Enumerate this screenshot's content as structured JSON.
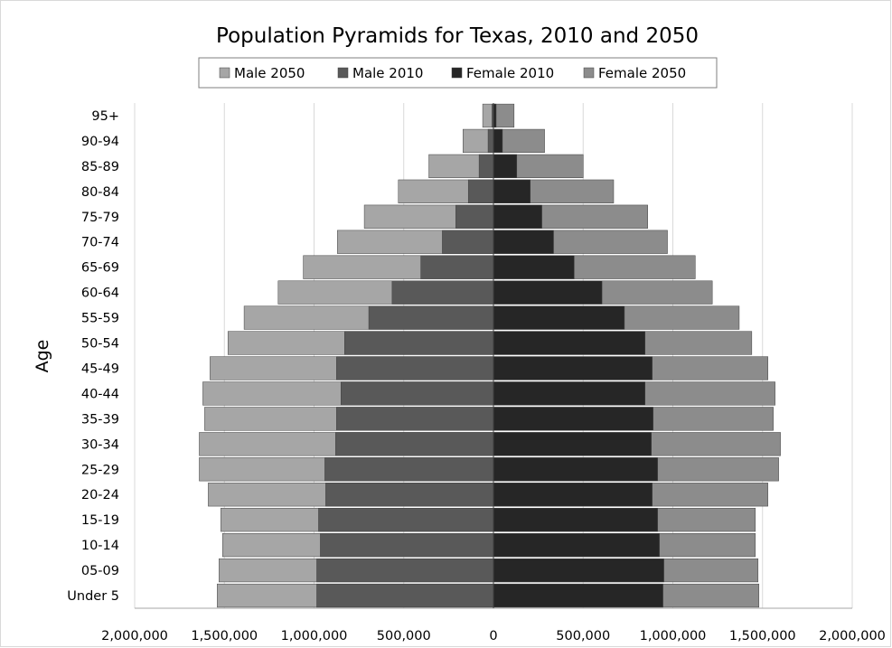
{
  "chart_data": {
    "type": "bar",
    "orientation": "horizontal",
    "title": "Population Pyramids for Texas, 2010 and 2050",
    "ylabel": "Age",
    "xlabel": "",
    "xlim": [
      -2000000,
      2000000
    ],
    "x_ticks": [
      -2000000,
      -1500000,
      -1000000,
      -500000,
      0,
      500000,
      1000000,
      1500000,
      2000000
    ],
    "x_tick_labels": [
      "2,000,000",
      "1,500,000",
      "1,000,000",
      "500,000",
      "0",
      "500,000",
      "1,000,000",
      "1,500,000",
      "2,000,000"
    ],
    "grid": "vertical",
    "legend_position": "top",
    "categories": [
      "Under 5",
      "05-09",
      "10-14",
      "15-19",
      "20-24",
      "25-29",
      "30-34",
      "35-39",
      "40-44",
      "45-49",
      "50-54",
      "55-59",
      "60-64",
      "65-69",
      "70-74",
      "75-79",
      "80-84",
      "85-89",
      "90-94",
      "95+"
    ],
    "series": [
      {
        "name": "Male 2050",
        "color": "#a6a6a6",
        "side": "left",
        "values": [
          1540000,
          1530000,
          1510000,
          1520000,
          1590000,
          1640000,
          1640000,
          1610000,
          1620000,
          1580000,
          1480000,
          1390000,
          1200000,
          1060000,
          870000,
          720000,
          530000,
          360000,
          170000,
          60000
        ]
      },
      {
        "name": "Male 2010",
        "color": "#595959",
        "side": "left",
        "values": [
          985000,
          985000,
          965000,
          975000,
          935000,
          940000,
          880000,
          875000,
          850000,
          875000,
          830000,
          695000,
          565000,
          405000,
          285000,
          210000,
          140000,
          80000,
          30000,
          8000
        ]
      },
      {
        "name": "Female 2010",
        "color": "#262626",
        "side": "right",
        "values": [
          945000,
          950000,
          925000,
          915000,
          885000,
          915000,
          880000,
          890000,
          845000,
          885000,
          845000,
          730000,
          605000,
          450000,
          335000,
          270000,
          205000,
          130000,
          50000,
          15000
        ]
      },
      {
        "name": "Female 2050",
        "color": "#8c8c8c",
        "side": "right",
        "values": [
          1480000,
          1475000,
          1460000,
          1460000,
          1530000,
          1590000,
          1600000,
          1560000,
          1570000,
          1530000,
          1440000,
          1370000,
          1220000,
          1125000,
          970000,
          860000,
          670000,
          500000,
          285000,
          115000
        ]
      }
    ]
  }
}
